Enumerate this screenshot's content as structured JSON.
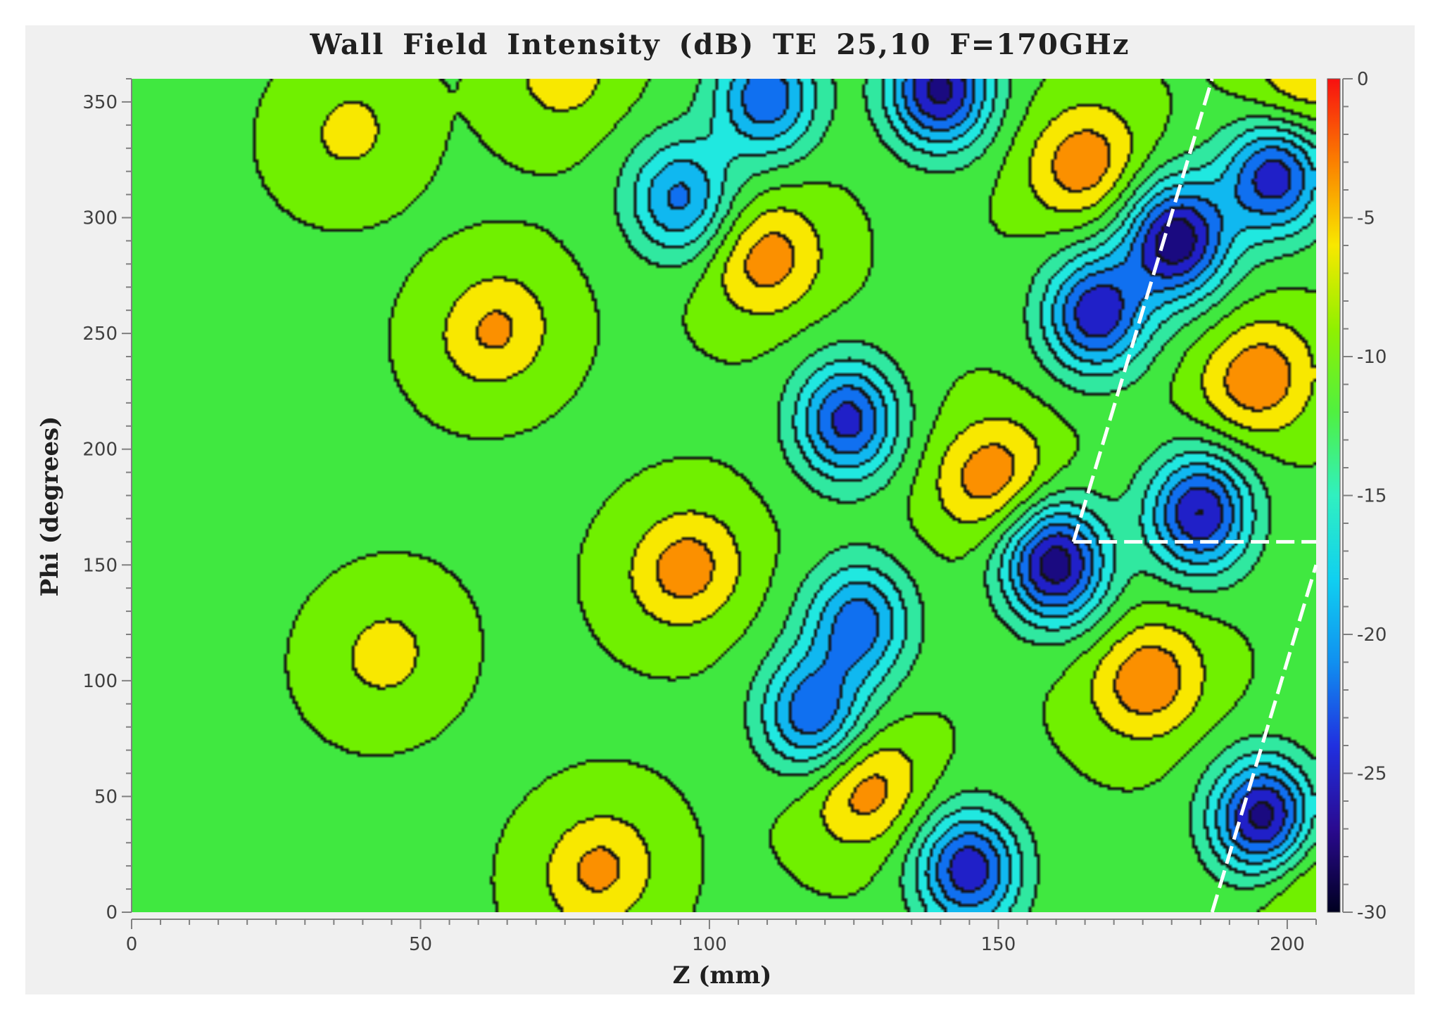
{
  "chart_data": {
    "type": "heatmap",
    "title": "Wall Field Intensity (dB) TE 25,10  F=170GHz",
    "xlabel": "Z (mm)",
    "ylabel": "Phi (degrees)",
    "xlim": [
      0,
      205
    ],
    "ylim": [
      0,
      360
    ],
    "x_ticks": [
      "0",
      "50",
      "100",
      "150",
      "200"
    ],
    "y_ticks": [
      "0",
      "50",
      "100",
      "150",
      "200",
      "250",
      "300",
      "350"
    ],
    "colorbar": {
      "range": [
        -30,
        0
      ],
      "ticks": [
        "0",
        "-5",
        "-10",
        "-15",
        "-20",
        "-25",
        "-30"
      ],
      "levels": [
        -30,
        -27.5,
        -25,
        -22.5,
        -20,
        -17.5,
        -15,
        -12.5,
        -10,
        -7.5,
        -5,
        -2.5,
        0
      ],
      "colors": [
        "#000030",
        "#1a0a80",
        "#2020c8",
        "#1070f0",
        "#10b8f0",
        "#20e8e0",
        "#30e8a0",
        "#40e840",
        "#70f000",
        "#f8e800",
        "#fb9000",
        "#f82000"
      ]
    },
    "hotspots": [
      {
        "z": 63,
        "phi": 251,
        "peak_db": -4.5
      },
      {
        "z": 110,
        "phi": 282,
        "peak_db": -3.6
      },
      {
        "z": 96,
        "phi": 148,
        "peak_db": -3.6
      },
      {
        "z": 127,
        "phi": 53,
        "peak_db": -3.5
      },
      {
        "z": 149,
        "phi": 188,
        "peak_db": -3.3
      },
      {
        "z": 165,
        "phi": 323,
        "peak_db": -3.2
      },
      {
        "z": 176,
        "phi": 100,
        "peak_db": -3.0
      },
      {
        "z": 195,
        "phi": 230,
        "peak_db": -3.0
      },
      {
        "z": 81,
        "phi": 18,
        "peak_db": -4.3
      },
      {
        "z": 75,
        "phi": 362,
        "peak_db": -6.2
      },
      {
        "z": 44,
        "phi": 111,
        "peak_db": -6.5
      },
      {
        "z": 38,
        "phi": 337,
        "peak_db": -6.8
      },
      {
        "z": 202,
        "phi": 355,
        "peak_db": -5.0
      },
      {
        "z": 203,
        "phi": 15,
        "peak_db": -6.0
      }
    ],
    "nulls": [
      {
        "z": 140,
        "phi": 355,
        "depth_db": -31
      },
      {
        "z": 181,
        "phi": 290,
        "depth_db": -32
      },
      {
        "z": 160,
        "phi": 150,
        "depth_db": -32
      },
      {
        "z": 196,
        "phi": 40,
        "depth_db": -32
      },
      {
        "z": 185,
        "phi": 172,
        "depth_db": -30
      },
      {
        "z": 167,
        "phi": 258,
        "depth_db": -29
      },
      {
        "z": 145,
        "phi": 18,
        "depth_db": -29
      },
      {
        "z": 124,
        "phi": 212,
        "depth_db": -28
      },
      {
        "z": 198,
        "phi": 318,
        "depth_db": -29
      },
      {
        "z": 110,
        "phi": 352,
        "depth_db": -26
      },
      {
        "z": 118,
        "phi": 85,
        "depth_db": -26
      },
      {
        "z": 126,
        "phi": 125,
        "depth_db": -25
      },
      {
        "z": 95,
        "phi": 308,
        "depth_db": -24
      }
    ],
    "annotation_lines": [
      {
        "style": "white-dashed",
        "points": [
          [
            187,
            0
          ],
          [
            205,
            150
          ]
        ]
      },
      {
        "style": "white-dashed",
        "points": [
          [
            163,
            160
          ],
          [
            205,
            160
          ]
        ]
      },
      {
        "style": "white-dashed",
        "points": [
          [
            163,
            160
          ],
          [
            187,
            360
          ]
        ]
      }
    ],
    "grid": false,
    "legend": "colorbar-right"
  }
}
